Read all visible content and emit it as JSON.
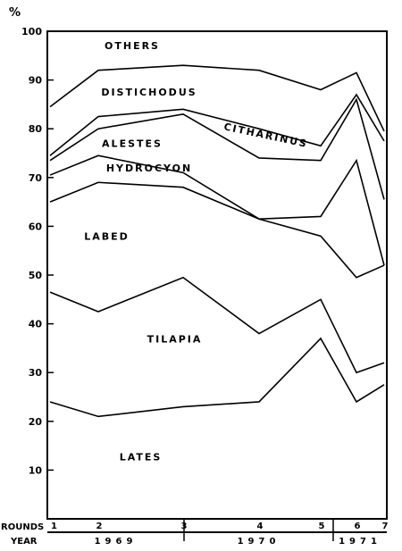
{
  "chart_data": {
    "type": "area",
    "unit_label": "%",
    "ylim": [
      0,
      100
    ],
    "y_ticks": [
      10,
      20,
      30,
      40,
      50,
      60,
      70,
      80,
      90,
      100
    ],
    "rounds_label": "ROUNDS",
    "year_label": "YEAR",
    "rounds": [
      "1",
      "2",
      "3",
      "4",
      "5",
      "6",
      "7"
    ],
    "years": [
      {
        "label": "1969",
        "rounds": [
          "1",
          "2"
        ]
      },
      {
        "label": "1970",
        "rounds": [
          "3",
          "4",
          "5"
        ]
      },
      {
        "label": "1971",
        "rounds": [
          "6",
          "7"
        ]
      }
    ],
    "boundaries": [
      {
        "id": "lates-top",
        "values": [
          24,
          21,
          23,
          24,
          37,
          24,
          27.5
        ]
      },
      {
        "id": "tilapia-top",
        "values": [
          46.5,
          42.5,
          49.5,
          38,
          45,
          30,
          32
        ]
      },
      {
        "id": "labed-top",
        "values": [
          65,
          69,
          68,
          61.5,
          58,
          49.5,
          52
        ]
      },
      {
        "id": "hydrocyon-top",
        "values": [
          70.5,
          74.5,
          71,
          61.5,
          62,
          73.5,
          52
        ]
      },
      {
        "id": "alestes-top",
        "values": [
          73.5,
          80,
          83,
          74,
          73.5,
          86,
          65.5
        ]
      },
      {
        "id": "citharinus-top",
        "values": [
          74.5,
          82.5,
          84,
          80,
          76.5,
          87,
          77.5
        ]
      },
      {
        "id": "distichodus-top",
        "values": [
          84.5,
          92,
          93,
          92,
          88,
          91.5,
          79.5
        ]
      }
    ],
    "bands": [
      {
        "name": "LATES",
        "label_x": 2.5,
        "label_y": 12
      },
      {
        "name": "TILAPIA",
        "label_x": 2.9,
        "label_y": 36.2
      },
      {
        "name": "LABED",
        "label_x": 2.1,
        "label_y": 57.2
      },
      {
        "name": "HYDROCYON",
        "label_x": 2.6,
        "label_y": 71.2
      },
      {
        "name": "ALESTES",
        "label_x": 2.4,
        "label_y": 76.3
      },
      {
        "name": "CITHARINUS",
        "label_x": 4.1,
        "label_y": 78,
        "rotate": 12
      },
      {
        "name": "DISTICHODUS",
        "label_x": 2.6,
        "label_y": 86.8
      },
      {
        "name": "OTHERS",
        "label_x": 2.4,
        "label_y": 96.3
      }
    ]
  }
}
